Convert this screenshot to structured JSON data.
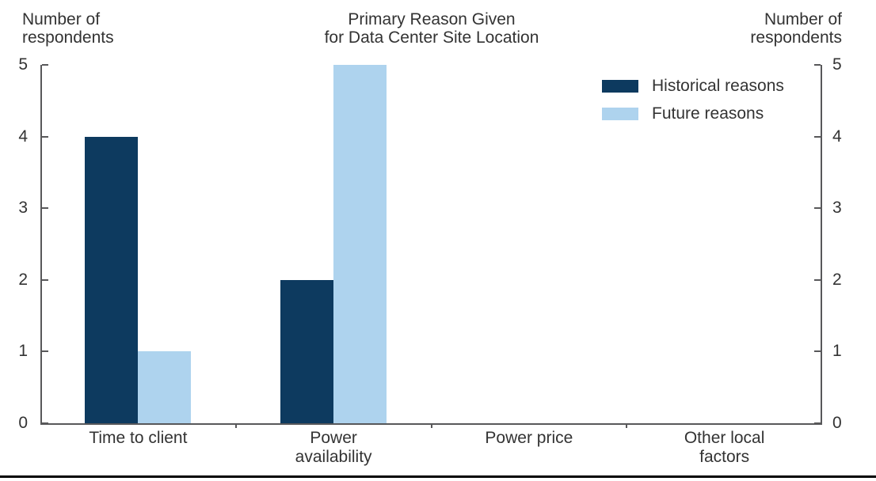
{
  "title": {
    "line1": "Primary Reason Given",
    "line2": "for Data Center Site Location"
  },
  "axis_labels": {
    "left": {
      "line1": "Number of",
      "line2": "respondents"
    },
    "right": {
      "line1": "Number of",
      "line2": "respondents"
    }
  },
  "colors": {
    "historical": "#0d3a5f",
    "future": "#aed3ee",
    "axis": "#58585a",
    "text": "#333333",
    "bottom_rule": "#000000"
  },
  "chart_data": {
    "type": "bar",
    "title": "Primary Reason Given for Data Center Site Location",
    "categories": [
      "Time to client",
      "Power availability",
      "Power price",
      "Other local factors"
    ],
    "category_label_lines": [
      [
        "Time to client"
      ],
      [
        "Power",
        "availability"
      ],
      [
        "Power price"
      ],
      [
        "Other local",
        "factors"
      ]
    ],
    "series": [
      {
        "name": "Historical reasons",
        "color": "#0d3a5f",
        "values": [
          4,
          2,
          0,
          0
        ]
      },
      {
        "name": "Future reasons",
        "color": "#aed3ee",
        "values": [
          1,
          5,
          0,
          0
        ]
      }
    ],
    "ylabel_left": "Number of respondents",
    "ylabel_right": "Number of respondents",
    "ylim": [
      0,
      5
    ],
    "yticks": [
      0,
      1,
      2,
      3,
      4,
      5
    ],
    "grid": false,
    "legend_position": "upper-right-inside"
  }
}
